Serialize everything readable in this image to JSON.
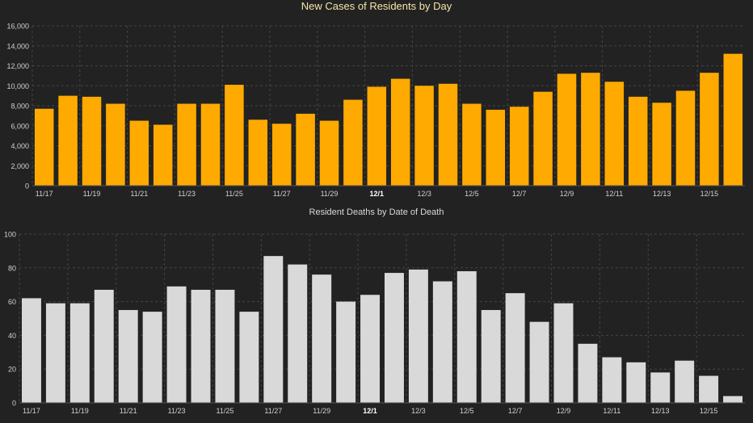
{
  "colors": {
    "background": "#222222",
    "cases_bar": "#FFAA00",
    "deaths_bar": "#D9D9D9",
    "tick_text": "#d0d0d0",
    "grid": "#444444"
  },
  "chart_data": [
    {
      "type": "bar",
      "title": "New Cases of Residents by Day",
      "xlabel": "",
      "ylabel": "",
      "categories": [
        "11/17",
        "11/18",
        "11/19",
        "11/20",
        "11/21",
        "11/22",
        "11/23",
        "11/24",
        "11/25",
        "11/26",
        "11/27",
        "11/28",
        "11/29",
        "11/30",
        "12/1",
        "12/2",
        "12/3",
        "12/4",
        "12/5",
        "12/6",
        "12/7",
        "12/8",
        "12/9",
        "12/10",
        "12/11",
        "12/12",
        "12/13",
        "12/14",
        "12/15",
        "12/16"
      ],
      "x_tick_labels": [
        "11/17",
        "11/19",
        "11/21",
        "11/23",
        "11/25",
        "11/27",
        "11/29",
        "12/1",
        "12/3",
        "12/5",
        "12/7",
        "12/9",
        "12/11",
        "12/13",
        "12/15"
      ],
      "bold_tick": "12/1",
      "values": [
        7700,
        9000,
        8900,
        8200,
        6500,
        6100,
        8200,
        8200,
        10100,
        6600,
        6200,
        7200,
        6500,
        8600,
        9900,
        10700,
        10000,
        10200,
        8200,
        7600,
        7900,
        9400,
        11200,
        11300,
        10400,
        8900,
        8300,
        9500,
        11300,
        13200
      ],
      "y_ticks": [
        "0",
        "2,000",
        "4,000",
        "6,000",
        "8,000",
        "10,000",
        "12,000",
        "14,000",
        "16,000"
      ],
      "ylim": [
        0,
        16000
      ],
      "grid": true
    },
    {
      "type": "bar",
      "title": "Resident Deaths by Date of Death",
      "xlabel": "",
      "ylabel": "",
      "categories": [
        "11/17",
        "11/18",
        "11/19",
        "11/20",
        "11/21",
        "11/22",
        "11/23",
        "11/24",
        "11/25",
        "11/26",
        "11/27",
        "11/28",
        "11/29",
        "11/30",
        "12/1",
        "12/2",
        "12/3",
        "12/4",
        "12/5",
        "12/6",
        "12/7",
        "12/8",
        "12/9",
        "12/10",
        "12/11",
        "12/12",
        "12/13",
        "12/14",
        "12/15",
        "12/16"
      ],
      "x_tick_labels": [
        "11/17",
        "11/19",
        "11/21",
        "11/23",
        "11/25",
        "11/27",
        "11/29",
        "12/1",
        "12/3",
        "12/5",
        "12/7",
        "12/9",
        "12/11",
        "12/13",
        "12/15"
      ],
      "bold_tick": "12/1",
      "values": [
        62,
        59,
        59,
        67,
        55,
        54,
        69,
        67,
        67,
        54,
        87,
        82,
        76,
        60,
        64,
        77,
        79,
        72,
        78,
        55,
        65,
        48,
        59,
        35,
        27,
        24,
        18,
        25,
        16,
        4
      ],
      "y_ticks": [
        "0",
        "20",
        "40",
        "60",
        "80",
        "100"
      ],
      "ylim": [
        0,
        100
      ],
      "grid": true
    }
  ]
}
